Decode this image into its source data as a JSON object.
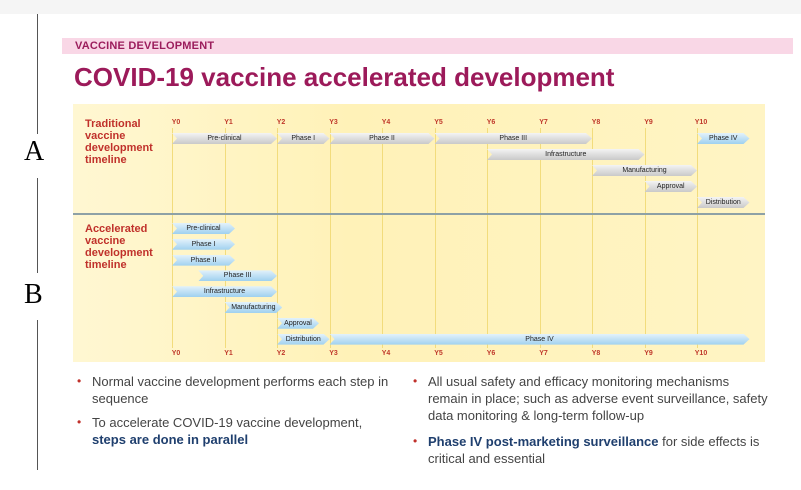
{
  "side_letters": [
    "A",
    "B"
  ],
  "section_label": "VACCINE DEVELOPMENT",
  "title": "COVID-19 vaccine accelerated development",
  "traditional": {
    "label": "Traditional vaccine development timeline",
    "ticks": [
      "Y0",
      "Y1",
      "Y2",
      "Y3",
      "Y4",
      "Y5",
      "Y6",
      "Y7",
      "Y8",
      "Y9",
      "Y10"
    ],
    "bars": [
      {
        "label": "Pre-clinical",
        "start": 0,
        "end": 2,
        "row": 0
      },
      {
        "label": "Phase I",
        "start": 2,
        "end": 3,
        "row": 0
      },
      {
        "label": "Phase II",
        "start": 3,
        "end": 5,
        "row": 0
      },
      {
        "label": "Phase III",
        "start": 5,
        "end": 8,
        "row": 0
      },
      {
        "label": "Phase IV",
        "start": 10,
        "end": 11,
        "row": 0,
        "blue": true
      },
      {
        "label": "Infrastructure",
        "start": 6,
        "end": 9,
        "row": 1
      },
      {
        "label": "Manufacturing",
        "start": 8,
        "end": 10,
        "row": 2
      },
      {
        "label": "Approval",
        "start": 9,
        "end": 10,
        "row": 3
      },
      {
        "label": "Distribution",
        "start": 10,
        "end": 11,
        "row": 4
      }
    ]
  },
  "accelerated": {
    "label": "Accelerated vaccine development timeline",
    "ticks": [
      "Y0",
      "Y1",
      "Y2",
      "Y3",
      "Y4",
      "Y5",
      "Y6",
      "Y7",
      "Y8",
      "Y9",
      "Y10"
    ],
    "bars": [
      {
        "label": "Pre-clinical",
        "start": 0,
        "end": 1.2,
        "row": 0
      },
      {
        "label": "Phase I",
        "start": 0,
        "end": 1.2,
        "row": 1
      },
      {
        "label": "Phase II",
        "start": 0,
        "end": 1.2,
        "row": 2
      },
      {
        "label": "Phase III",
        "start": 0.5,
        "end": 2,
        "row": 3
      },
      {
        "label": "Infrastructure",
        "start": 0,
        "end": 2,
        "row": 4
      },
      {
        "label": "Manufacturing",
        "start": 1,
        "end": 2.1,
        "row": 5
      },
      {
        "label": "Approval",
        "start": 2,
        "end": 2.8,
        "row": 6
      },
      {
        "label": "Distribution",
        "start": 2,
        "end": 3,
        "row": 7
      },
      {
        "label": "Phase IV",
        "start": 3,
        "end": 11,
        "row": 7
      }
    ]
  },
  "bullets_left": [
    {
      "text": "Normal vaccine development performs each step in sequence",
      "bold": ""
    },
    {
      "text": "To accelerate COVID-19 vaccine development,",
      "bold": "steps are done in parallel"
    }
  ],
  "bullets_right": [
    {
      "text": "All usual safety and efficacy monitoring mechanisms remain in place; such as adverse event surveillance, safety data monitoring & long-term follow-up",
      "bold": ""
    },
    {
      "text": "is critical and essential",
      "bold": "Phase IV post-marketing surveillance",
      "bold_first": true,
      "mid": " for side effects"
    }
  ],
  "colors": {
    "title": "#9c1a5a",
    "accent_red": "#c0312b",
    "bold_blue": "#1f3f6e"
  }
}
